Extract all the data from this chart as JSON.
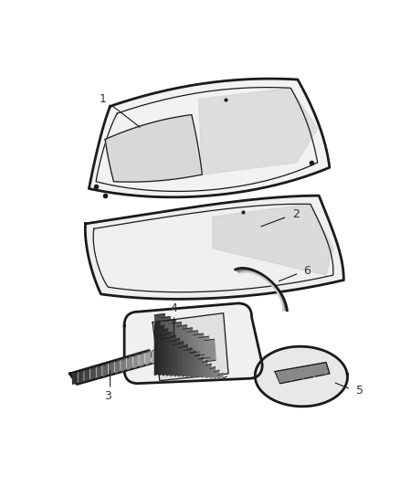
{
  "bg_color": "#ffffff",
  "line_color": "#1a1a1a",
  "label_color": "#333333",
  "figsize": [
    4.38,
    5.33
  ],
  "dpi": 100,
  "lw_main": 2.0,
  "lw_thin": 0.9,
  "label_fs": 9
}
